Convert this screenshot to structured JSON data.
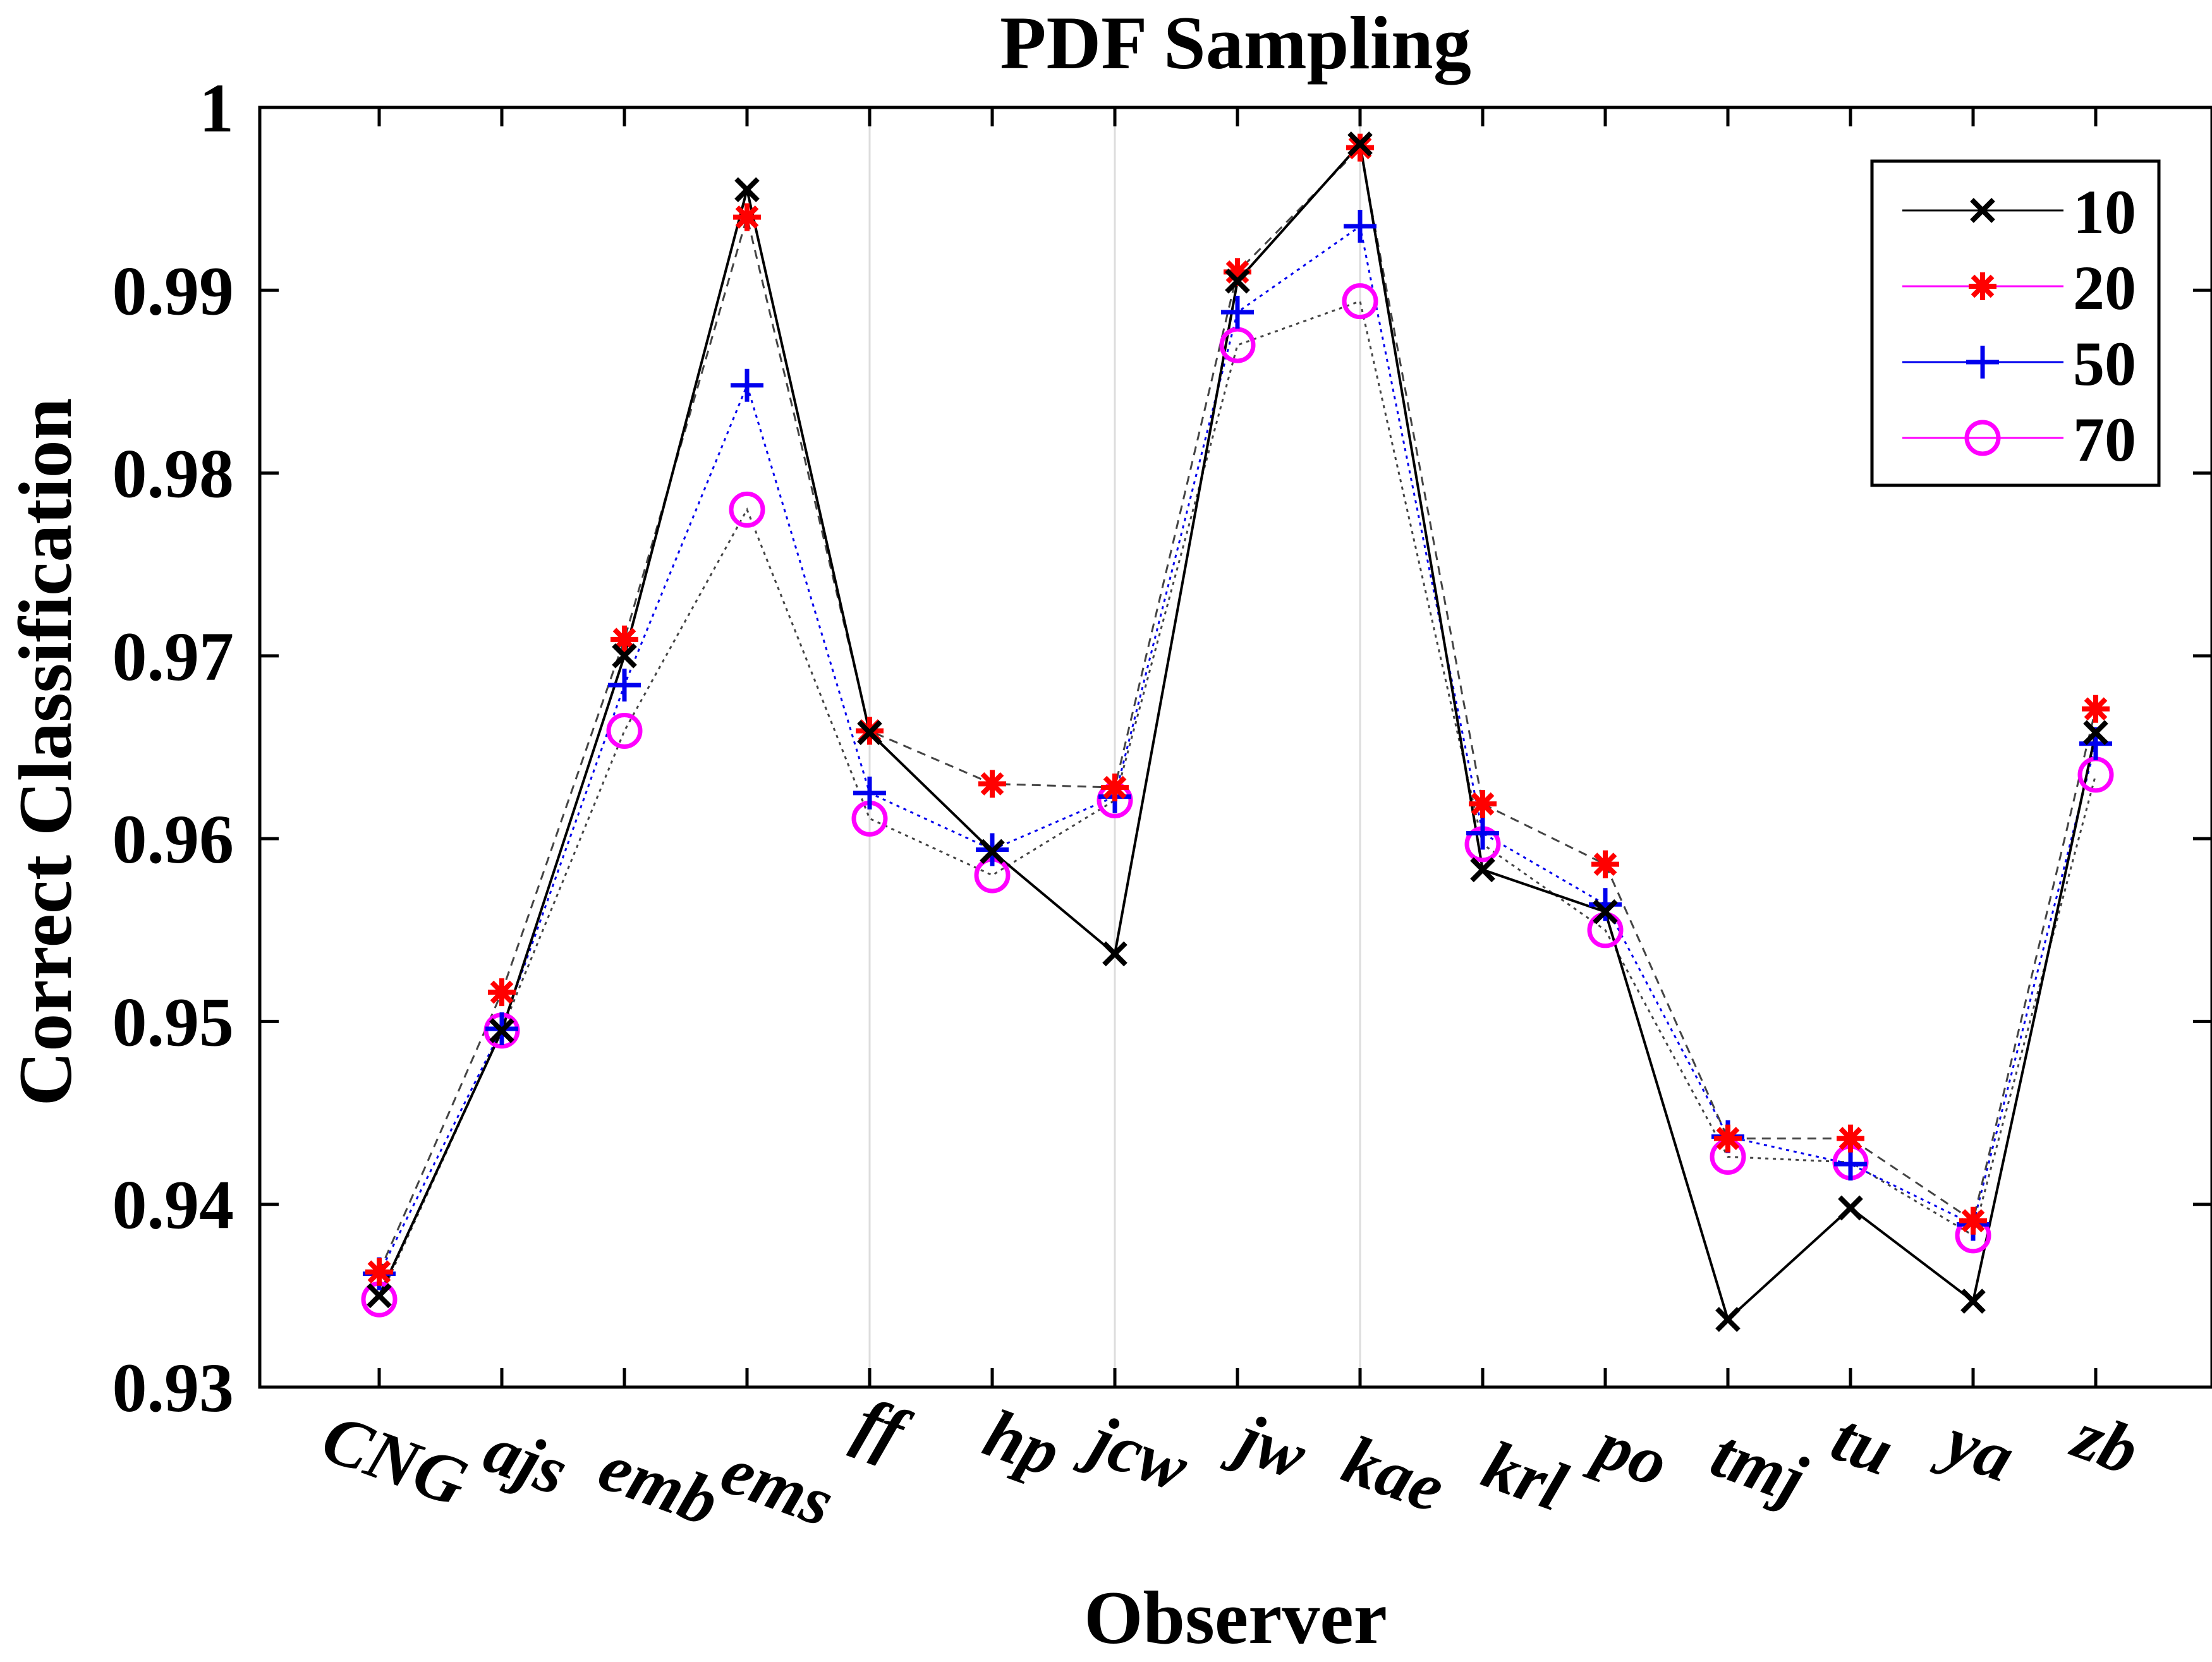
{
  "chart_data": {
    "type": "line",
    "title": "PDF Sampling",
    "xlabel": "Observer",
    "ylabel": "Correct Classification",
    "categories": [
      "CNG",
      "ajs",
      "emb",
      "ems",
      "ff",
      "hp",
      "jcw",
      "jw",
      "kae",
      "krl",
      "po",
      "tmj",
      "tu",
      "ya",
      "zb"
    ],
    "ylim": [
      0.93,
      1.0
    ],
    "yticks": [
      0.93,
      0.94,
      0.95,
      0.96,
      0.97,
      0.98,
      0.99,
      1
    ],
    "ytick_labels": [
      "0.93",
      "0.94",
      "0.95",
      "0.96",
      "0.97",
      "0.98",
      "0.99",
      "1"
    ],
    "legend_position": "top-right",
    "series": [
      {
        "name": "10",
        "marker": "x",
        "color": "#000000",
        "line_style": "solid",
        "values": [
          0.935,
          0.9495,
          0.97,
          0.9955,
          0.9658,
          0.9593,
          0.9537,
          0.9905,
          0.998,
          0.9583,
          0.956,
          0.9337,
          0.9398,
          0.9347,
          0.9658
        ]
      },
      {
        "name": "20",
        "marker": "asterisk",
        "color": "#ff0000",
        "line_style": "dashed",
        "values": [
          0.9363,
          0.9516,
          0.9709,
          0.994,
          0.9659,
          0.963,
          0.9628,
          0.991,
          0.9978,
          0.9619,
          0.9586,
          0.9436,
          0.9436,
          0.9391,
          0.9671
        ]
      },
      {
        "name": "50",
        "marker": "plus",
        "color": "#0000ee",
        "line_style": "dotted",
        "values": [
          0.9362,
          0.9496,
          0.9684,
          0.9848,
          0.9625,
          0.9594,
          0.9623,
          0.9888,
          0.9935,
          0.9603,
          0.9564,
          0.9437,
          0.9422,
          0.9389,
          0.9652
        ]
      },
      {
        "name": "70",
        "marker": "circle",
        "color": "#ff00ff",
        "line_style": "dotted",
        "values": [
          0.9348,
          0.9495,
          0.9659,
          0.978,
          0.9611,
          0.958,
          0.9621,
          0.987,
          0.9894,
          0.9597,
          0.955,
          0.9426,
          0.9423,
          0.9383,
          0.9635
        ]
      }
    ],
    "grid_x_at": [
      "ff",
      "jcw",
      "kae"
    ]
  }
}
